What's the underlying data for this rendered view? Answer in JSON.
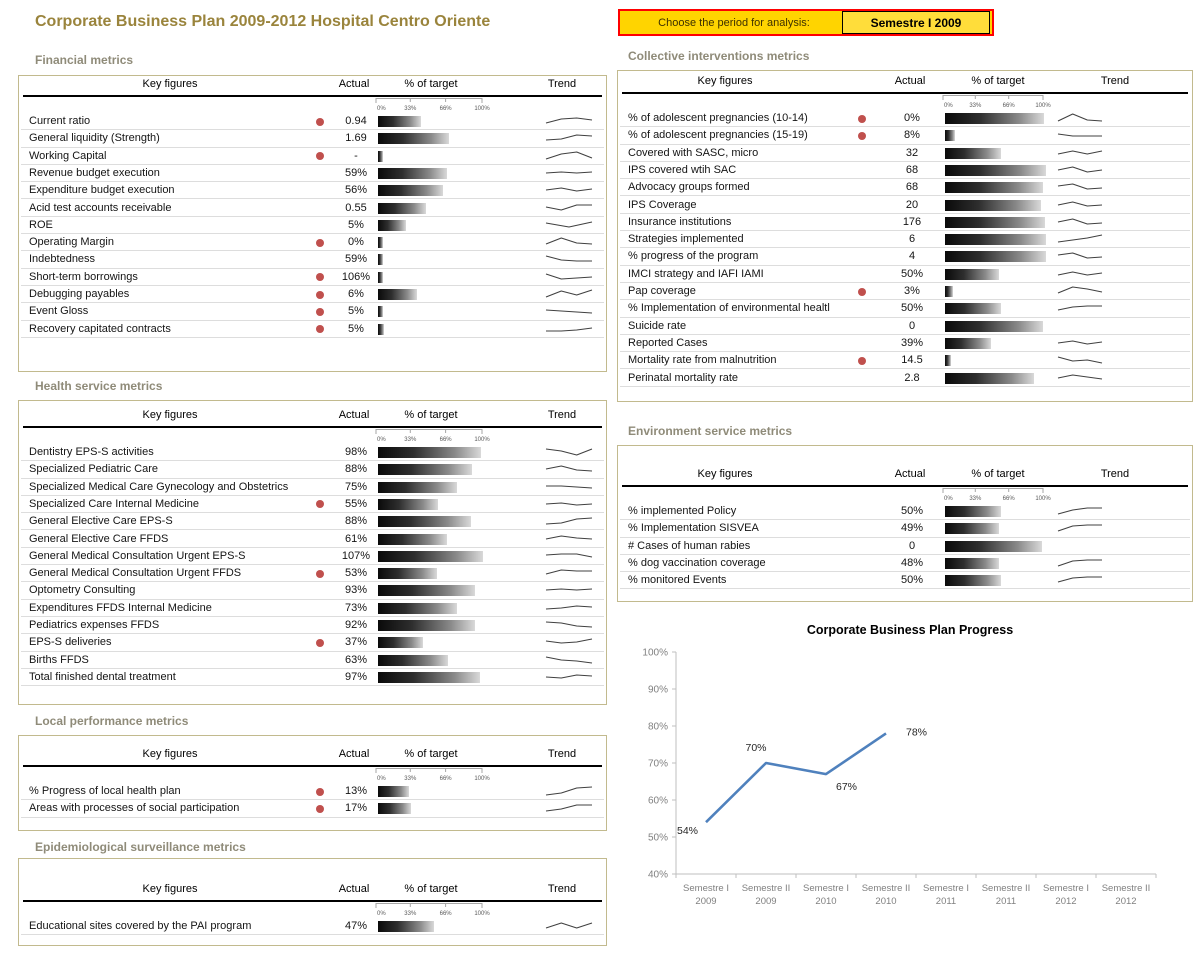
{
  "page": {
    "title": "Corporate Business Plan 2009-2012 Hospital Centro Oriente"
  },
  "period": {
    "label": "Choose the period for analysis:",
    "value": "Semestre I 2009"
  },
  "table_headers": {
    "key_figures": "Key figures",
    "actual": "Actual",
    "target": "% of target",
    "trend": "Trend"
  },
  "scale_labels": [
    "0%",
    "33%",
    "66%",
    "100%"
  ],
  "colors": {
    "title_text": "#9a843c",
    "section_heading": "#8f8b79",
    "panel_border": "#c2ba8e",
    "alert_dot": "#c0504d",
    "bar_dark": "#0a0a0a",
    "bar_light": "#d9d9d9",
    "period_fill": "#ffd400",
    "period_border": "#ff0000",
    "chart_line": "#4f81bd"
  },
  "panels": [
    {
      "title": "Financial metrics",
      "side": "left",
      "rows": [
        {
          "label": "Current ratio",
          "flag": true,
          "actual": "0.94",
          "target_pct": 40,
          "trend": [
            7,
            3,
            2,
            4
          ]
        },
        {
          "label": "General liquidity (Strength)",
          "flag": false,
          "actual": "1.69",
          "target_pct": 66,
          "trend": [
            7,
            6,
            2,
            3
          ]
        },
        {
          "label": "Working Capital",
          "flag": true,
          "actual": "-",
          "target_pct": 5,
          "trend": [
            8,
            3,
            1,
            7
          ]
        },
        {
          "label": "Revenue budget execution",
          "flag": false,
          "actual": "59%",
          "target_pct": 64,
          "trend": [
            5,
            4,
            5,
            4
          ]
        },
        {
          "label": "Expenditure budget execution",
          "flag": false,
          "actual": "56%",
          "target_pct": 61,
          "trend": [
            5,
            3,
            6,
            4
          ]
        },
        {
          "label": "Acid test accounts receivable",
          "flag": false,
          "actual": "0.55",
          "target_pct": 45,
          "trend": [
            4,
            7,
            2,
            2
          ]
        },
        {
          "label": "ROE",
          "flag": false,
          "actual": "5%",
          "target_pct": 26,
          "trend": [
            3,
            7,
            2
          ]
        },
        {
          "label": "Operating Margin",
          "flag": true,
          "actual": "0%",
          "target_pct": 5,
          "trend": [
            7,
            1,
            6,
            7
          ]
        },
        {
          "label": "Indebtedness",
          "flag": false,
          "actual": "59%",
          "target_pct": 5,
          "trend": [
            2,
            6,
            7,
            7
          ]
        },
        {
          "label": "Short-term borrowings",
          "flag": true,
          "actual": "106%",
          "target_pct": 5,
          "trend": [
            2,
            7,
            6,
            5
          ]
        },
        {
          "label": "Debugging payables",
          "flag": true,
          "actual": "6%",
          "target_pct": 36,
          "trend": [
            8,
            2,
            6,
            1
          ]
        },
        {
          "label": "Event Gloss",
          "flag": true,
          "actual": "5%",
          "target_pct": 5,
          "trend": [
            4,
            5,
            6,
            7
          ]
        },
        {
          "label": "Recovery capitated contracts",
          "flag": true,
          "actual": "5%",
          "target_pct": 6,
          "trend": [
            7,
            7,
            6,
            4
          ]
        }
      ]
    },
    {
      "title": "Health service metrics",
      "side": "left",
      "rows": [
        {
          "label": "Dentistry EPS-S activities",
          "flag": false,
          "actual": "98%",
          "target_pct": 96,
          "trend": [
            2,
            4,
            8,
            2
          ]
        },
        {
          "label": "Specialized Pediatric Care",
          "flag": false,
          "actual": "88%",
          "target_pct": 88,
          "trend": [
            5,
            2,
            6,
            7
          ]
        },
        {
          "label": "Specialized Medical Care Gynecology and Obstetrics",
          "flag": false,
          "actual": "75%",
          "target_pct": 74,
          "trend": [
            4,
            4,
            5,
            6
          ]
        },
        {
          "label": "Specialized Care Internal Medicine",
          "flag": true,
          "actual": "55%",
          "target_pct": 56,
          "trend": [
            5,
            4,
            6,
            5
          ]
        },
        {
          "label": "General Elective Care EPS-S",
          "flag": false,
          "actual": "88%",
          "target_pct": 87,
          "trend": [
            8,
            7,
            3,
            2
          ]
        },
        {
          "label": "General Elective Care FFDS",
          "flag": false,
          "actual": "61%",
          "target_pct": 64,
          "trend": [
            5,
            2,
            4,
            5
          ]
        },
        {
          "label": "General Medical Consultation Urgent EPS-S",
          "flag": false,
          "actual": "107%",
          "target_pct": 98,
          "trend": [
            4,
            3,
            3,
            6
          ]
        },
        {
          "label": "General Medical Consultation Urgent FFDS",
          "flag": true,
          "actual": "53%",
          "target_pct": 55,
          "trend": [
            6,
            2,
            3,
            3
          ]
        },
        {
          "label": "Optometry Consulting",
          "flag": false,
          "actual": "93%",
          "target_pct": 91,
          "trend": [
            5,
            4,
            5,
            4
          ]
        },
        {
          "label": "Expenditures FFDS Internal Medicine",
          "flag": false,
          "actual": "73%",
          "target_pct": 74,
          "trend": [
            6,
            5,
            3,
            4
          ]
        },
        {
          "label": "Pediatrics expenses FFDS",
          "flag": false,
          "actual": "92%",
          "target_pct": 91,
          "trend": [
            2,
            3,
            6,
            7
          ]
        },
        {
          "label": "EPS-S deliveries",
          "flag": true,
          "actual": "37%",
          "target_pct": 42,
          "trend": [
            4,
            6,
            5,
            2
          ]
        },
        {
          "label": "Births FFDS",
          "flag": false,
          "actual": "63%",
          "target_pct": 65,
          "trend": [
            2,
            5,
            6,
            8
          ]
        },
        {
          "label": "Total finished dental treatment",
          "flag": false,
          "actual": "97%",
          "target_pct": 95,
          "trend": [
            5,
            6,
            3,
            4
          ]
        }
      ]
    },
    {
      "title": "Local performance metrics",
      "side": "left",
      "rows": [
        {
          "label": "% Progress of local health plan",
          "flag": true,
          "actual": "13%",
          "target_pct": 29,
          "trend": [
            9,
            7,
            2,
            1
          ]
        },
        {
          "label": "Areas with processes of social participation",
          "flag": true,
          "actual": "17%",
          "target_pct": 31,
          "trend": [
            8,
            6,
            2,
            2
          ]
        }
      ]
    },
    {
      "title": "Epidemiological surveillance metrics",
      "side": "left",
      "rows": [
        {
          "label": "Educational sites covered by the PAI program",
          "flag": false,
          "actual": "47%",
          "target_pct": 52,
          "trend": [
            7,
            2,
            7,
            2
          ]
        }
      ]
    },
    {
      "title": "Collective interventions metrics",
      "side": "right",
      "rows": [
        {
          "label": "% of adolescent pregnancies (10-14)",
          "flag": true,
          "actual": "0%",
          "target_pct": 98,
          "trend": [
            8,
            1,
            7,
            8
          ]
        },
        {
          "label": "% of adolescent pregnancies (15-19)",
          "flag": true,
          "actual": "8%",
          "target_pct": 10,
          "trend": [
            4,
            6,
            6,
            6
          ]
        },
        {
          "label": "Covered with SASC, micro",
          "flag": false,
          "actual": "32",
          "target_pct": 55,
          "trend": [
            6,
            3,
            6,
            3
          ]
        },
        {
          "label": "IPS covered wtih SAC",
          "flag": false,
          "actual": "68",
          "target_pct": 100,
          "trend": [
            5,
            2,
            7,
            5
          ]
        },
        {
          "label": "Advocacy groups formed",
          "flag": false,
          "actual": "68",
          "target_pct": 97,
          "trend": [
            4,
            2,
            7,
            6
          ]
        },
        {
          "label": "IPS Coverage",
          "flag": false,
          "actual": "20",
          "target_pct": 95,
          "trend": [
            5,
            2,
            6,
            5
          ]
        },
        {
          "label": "Insurance institutions",
          "flag": false,
          "actual": "176",
          "target_pct": 99,
          "trend": [
            5,
            2,
            7,
            6
          ]
        },
        {
          "label": "Strategies implemented",
          "flag": false,
          "actual": "6",
          "target_pct": 100,
          "trend": [
            8,
            6,
            4,
            1
          ]
        },
        {
          "label": "% progress of the program",
          "flag": false,
          "actual": "4",
          "target_pct": 100,
          "trend": [
            4,
            2,
            7,
            6
          ]
        },
        {
          "label": "IMCI strategy and IAFI IAMI",
          "flag": false,
          "actual": "50%",
          "target_pct": 53,
          "trend": [
            6,
            3,
            6,
            4
          ]
        },
        {
          "label": "Pap coverage",
          "flag": true,
          "actual": "3%",
          "target_pct": 8,
          "trend": [
            7,
            1,
            3,
            6
          ]
        },
        {
          "label": "% Implementation of environmental healtl",
          "flag": false,
          "actual": "50%",
          "target_pct": 55,
          "trend": [
            7,
            4,
            3,
            3
          ]
        },
        {
          "label": "Suicide rate",
          "flag": false,
          "actual": "0",
          "target_pct": 97,
          "trend": null
        },
        {
          "label": "Reported Cases",
          "flag": false,
          "actual": "39%",
          "target_pct": 45,
          "trend": [
            5,
            3,
            6,
            4
          ]
        },
        {
          "label": "Mortality rate from malnutrition",
          "flag": true,
          "actual": "14.5",
          "target_pct": 6,
          "trend": [
            2,
            6,
            5,
            8
          ]
        },
        {
          "label": "Perinatal mortality rate",
          "flag": false,
          "actual": "2.8",
          "target_pct": 88,
          "trend": [
            5,
            2,
            4,
            6
          ]
        }
      ]
    },
    {
      "title": "Environment service metrics",
      "side": "right",
      "rows": [
        {
          "label": "% implemented Policy",
          "flag": false,
          "actual": "50%",
          "target_pct": 55,
          "trend": [
            8,
            4,
            2,
            2
          ]
        },
        {
          "label": "% Implementation SISVEA",
          "flag": false,
          "actual": "49%",
          "target_pct": 53,
          "trend": [
            8,
            3,
            2,
            2
          ]
        },
        {
          "label": "# Cases of human rabies",
          "flag": false,
          "actual": "0",
          "target_pct": 96,
          "trend": null
        },
        {
          "label": "% dog vaccination coverage",
          "flag": false,
          "actual": "48%",
          "target_pct": 53,
          "trend": [
            8,
            3,
            2,
            2
          ]
        },
        {
          "label": "% monitored Events",
          "flag": false,
          "actual": "50%",
          "target_pct": 55,
          "trend": [
            7,
            3,
            2,
            2
          ]
        }
      ]
    }
  ],
  "chart_data": {
    "type": "line",
    "title": "Corporate Business Plan Progress",
    "categories": [
      "Semestre I 2009",
      "Semestre II 2009",
      "Semestre I 2010",
      "Semestre II 2010",
      "Semestre I 2011",
      "Semestre II 2011",
      "Semestre I 2012",
      "Semestre II 2012"
    ],
    "values": [
      54,
      70,
      67,
      78,
      null,
      null,
      null,
      null
    ],
    "data_labels": [
      "54%",
      "70%",
      "67%",
      "78%"
    ],
    "ylabel_ticks": [
      "100%",
      "90%",
      "80%",
      "70%",
      "60%",
      "50%",
      "40%"
    ],
    "ylim": [
      40,
      100
    ],
    "ytick_step": 10,
    "grid": false,
    "legend": "none",
    "line_color": "#4f81bd"
  }
}
